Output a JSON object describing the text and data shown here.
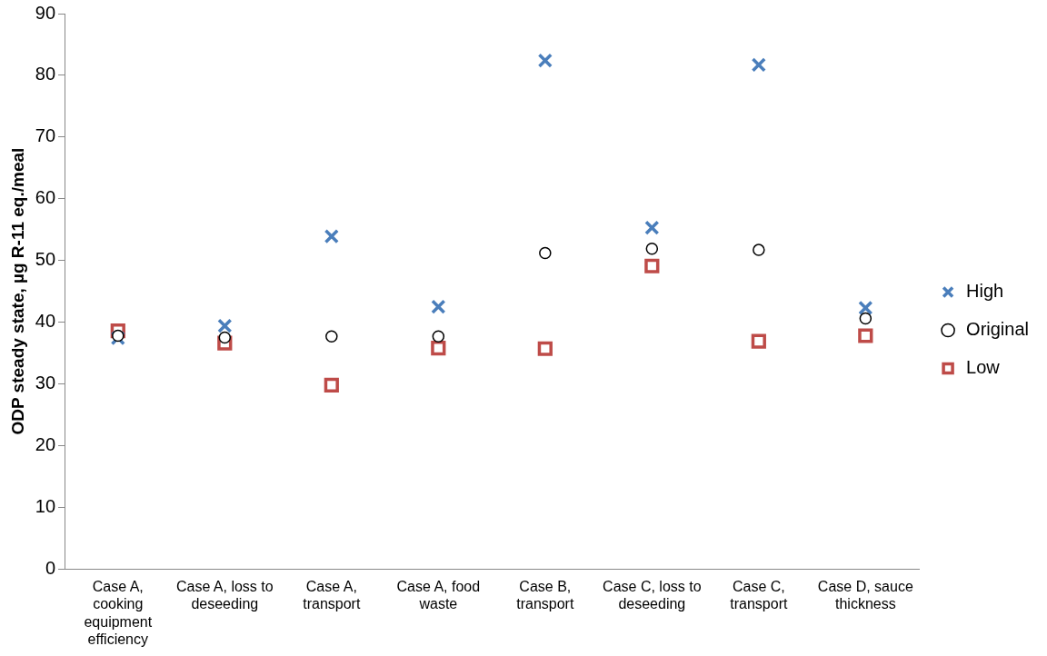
{
  "chart_data": {
    "type": "scatter",
    "ylabel": "ODP steady state, µg R-11 eq./meal",
    "categories": [
      "Case A, cooking equipment efficiency",
      "Case A, loss to deseeding",
      "Case A, transport",
      "Case A, food waste",
      "Case B, transport",
      "Case C, loss to deseeding",
      "Case C, transport",
      "Case D, sauce thickness"
    ],
    "series": [
      {
        "name": "High",
        "color": "#4a7ebb",
        "marker": "cross",
        "values": [
          37.4,
          39.4,
          53.9,
          42.5,
          82.4,
          55.3,
          81.7,
          42.3
        ]
      },
      {
        "name": "Original",
        "color": "#000000",
        "marker": "circle",
        "values": [
          37.8,
          37.5,
          37.7,
          37.7,
          51.2,
          51.9,
          51.7,
          40.6
        ]
      },
      {
        "name": "Low",
        "color": "#be4b48",
        "marker": "square",
        "values": [
          38.6,
          36.6,
          29.8,
          35.8,
          35.7,
          49.1,
          36.9,
          37.8
        ]
      }
    ],
    "ylim": [
      0,
      90
    ],
    "yticks": [
      0,
      10,
      20,
      30,
      40,
      50,
      60,
      70,
      80,
      90
    ],
    "grid": false,
    "legend": "right"
  }
}
